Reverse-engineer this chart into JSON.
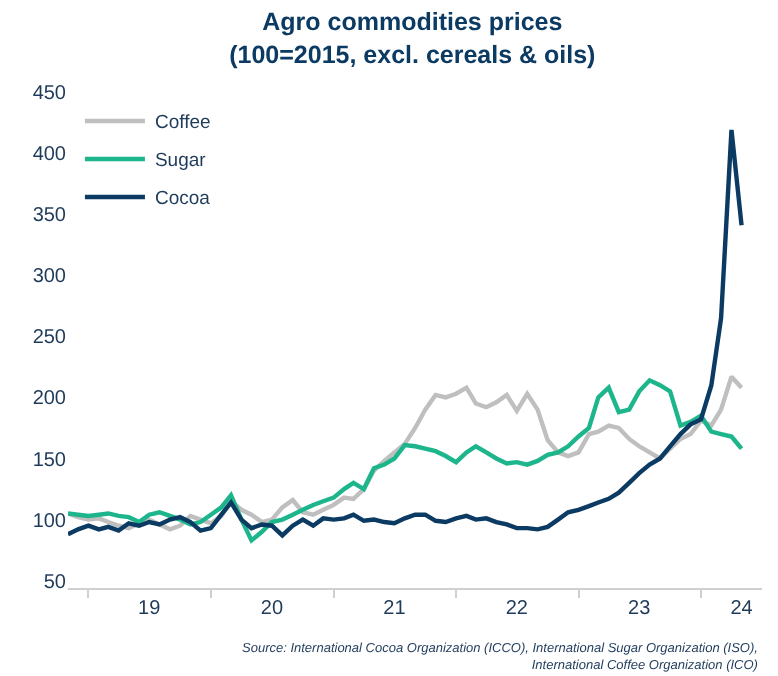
{
  "chart_data": {
    "type": "line",
    "title": "Agro commodities prices\n(100=2015, excl. cereals & oils)",
    "annotations": [
      "Source: International Cocoa Organization (ICCO), International Sugar Organization (ISO), International Coffee Organization (ICO)"
    ],
    "x": [
      "2018-11",
      "2018-12",
      "2019-01",
      "2019-02",
      "2019-03",
      "2019-04",
      "2019-05",
      "2019-06",
      "2019-07",
      "2019-08",
      "2019-09",
      "2019-10",
      "2019-11",
      "2019-12",
      "2020-01",
      "2020-02",
      "2020-03",
      "2020-04",
      "2020-05",
      "2020-06",
      "2020-07",
      "2020-08",
      "2020-09",
      "2020-10",
      "2020-11",
      "2020-12",
      "2021-01",
      "2021-02",
      "2021-03",
      "2021-04",
      "2021-05",
      "2021-06",
      "2021-07",
      "2021-08",
      "2021-09",
      "2021-10",
      "2021-11",
      "2021-12",
      "2022-01",
      "2022-02",
      "2022-03",
      "2022-04",
      "2022-05",
      "2022-06",
      "2022-07",
      "2022-08",
      "2022-09",
      "2022-10",
      "2022-11",
      "2022-12",
      "2023-01",
      "2023-02",
      "2023-03",
      "2023-04",
      "2023-05",
      "2023-06",
      "2023-07",
      "2023-08",
      "2023-09",
      "2023-10",
      "2023-11",
      "2023-12",
      "2024-01",
      "2024-02",
      "2024-03",
      "2024-04",
      "2024-05"
    ],
    "series": [
      {
        "name": "Coffee",
        "color": "#bfbfbf",
        "values": [
          105,
          102,
          100,
          101,
          98,
          95,
          93,
          97,
          100,
          96,
          92,
          95,
          103,
          100,
          97,
          103,
          115,
          108,
          104,
          98,
          100,
          110,
          116,
          106,
          104,
          108,
          112,
          118,
          117,
          125,
          140,
          148,
          155,
          162,
          175,
          190,
          202,
          200,
          203,
          208,
          195,
          192,
          196,
          202,
          189,
          203,
          190,
          165,
          155,
          152,
          155,
          170,
          172,
          177,
          175,
          166,
          160,
          155,
          150,
          158,
          166,
          170,
          181,
          177,
          190,
          217,
          208
        ]
      },
      {
        "name": "Sugar",
        "color": "#1db58b",
        "values": [
          105,
          104,
          103,
          104,
          105,
          103,
          102,
          98,
          104,
          106,
          103,
          100,
          96,
          98,
          104,
          110,
          120,
          100,
          83,
          90,
          98,
          100,
          104,
          108,
          112,
          115,
          118,
          125,
          130,
          125,
          142,
          145,
          150,
          161,
          160,
          158,
          156,
          152,
          147,
          155,
          160,
          155,
          150,
          146,
          147,
          145,
          148,
          153,
          155,
          160,
          168,
          175,
          200,
          208,
          188,
          190,
          205,
          214,
          210,
          205,
          177,
          180,
          185,
          172,
          170,
          168,
          158
        ]
      },
      {
        "name": "Cocoa",
        "color": "#0b3a63",
        "values": [
          88,
          92,
          95,
          92,
          94,
          91,
          97,
          95,
          98,
          96,
          100,
          102,
          98,
          91,
          93,
          104,
          114,
          100,
          93,
          96,
          95,
          87,
          95,
          100,
          95,
          101,
          100,
          101,
          104,
          99,
          100,
          98,
          97,
          101,
          104,
          104,
          99,
          98,
          101,
          103,
          100,
          101,
          98,
          96,
          93,
          93,
          92,
          94,
          100,
          106,
          108,
          111,
          114,
          117,
          122,
          130,
          138,
          145,
          150,
          160,
          170,
          178,
          182,
          210,
          265,
          419,
          341
        ]
      }
    ],
    "xlim": [
      "2018-11-01",
      "2024-07-01"
    ],
    "xticks": [
      {
        "value": "2019-01-01",
        "label": null
      },
      {
        "value": "2019-07-01",
        "label": "19"
      },
      {
        "value": "2020-01-01",
        "label": null
      },
      {
        "value": "2020-07-01",
        "label": "20"
      },
      {
        "value": "2021-01-01",
        "label": null
      },
      {
        "value": "2021-07-01",
        "label": "21"
      },
      {
        "value": "2022-01-01",
        "label": null
      },
      {
        "value": "2022-07-01",
        "label": "22"
      },
      {
        "value": "2023-01-01",
        "label": null
      },
      {
        "value": "2023-07-01",
        "label": "23"
      },
      {
        "value": "2024-01-01",
        "label": null
      },
      {
        "value": "2024-05-01",
        "label": "24"
      }
    ],
    "ylim": [
      44,
      450
    ],
    "yticks": [
      50,
      100,
      150,
      200,
      250,
      300,
      350,
      400,
      450
    ],
    "legend": "top left",
    "line_style": "solid",
    "marker": "none"
  }
}
